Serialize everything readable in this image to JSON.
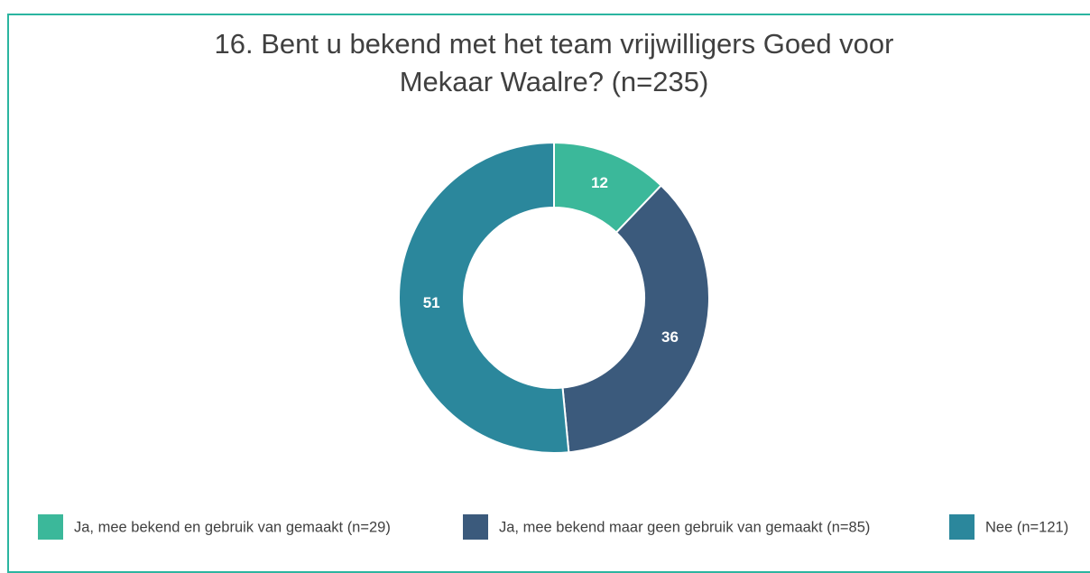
{
  "chart_data": {
    "type": "donut",
    "title": "16. Bent u bekend met het team vrijwilligers Goed voor Mekaar Waalre? (n=235)",
    "categories": [
      "Ja, mee bekend en gebruik van gemaakt (n=29)",
      "Ja, mee bekend maar geen gebruik van gemaakt (n=85)",
      "Nee (n=121)"
    ],
    "values": [
      12,
      36,
      51
    ],
    "colors": [
      "#3bb89a",
      "#3b5a7c",
      "#2b879c"
    ],
    "legend": "bottom"
  }
}
